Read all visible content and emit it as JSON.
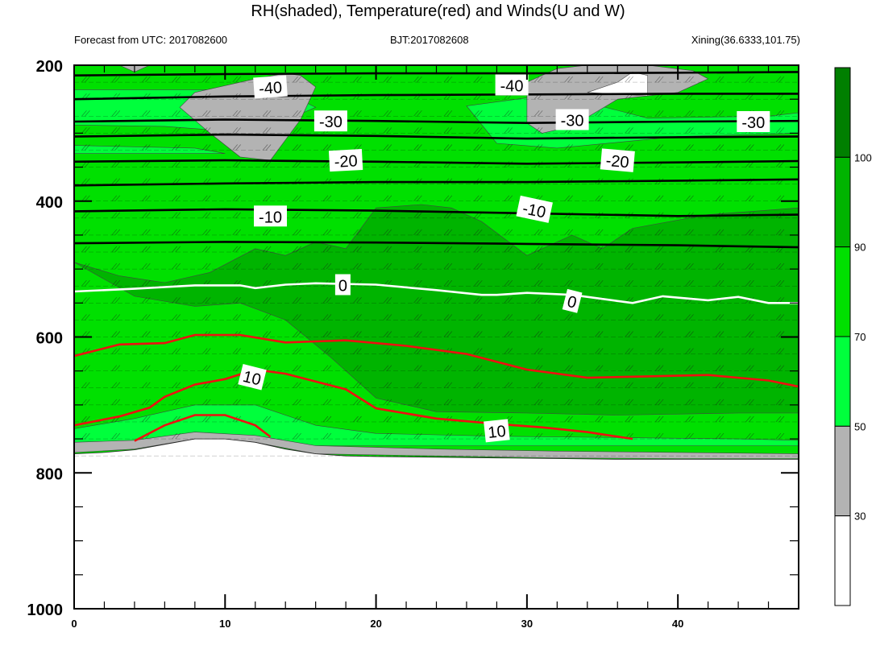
{
  "chart_data": {
    "type": "heatmap",
    "title": "RH(shaded), Temperature(red) and Winds(U and W)",
    "subtitle_left": "Forecast from UTC: 2017082600",
    "subtitle_center": "BJT:2017082608",
    "subtitle_right": "Xining(36.6333,101.75)",
    "xlim": [
      0,
      48
    ],
    "ylim": [
      1000,
      200
    ],
    "x_ticks": [
      0,
      10,
      20,
      30,
      40
    ],
    "x_tick_labels": [
      "0",
      "10",
      "20",
      "30",
      "40"
    ],
    "y_ticks": [
      200,
      400,
      600,
      800,
      1000
    ],
    "y_tick_labels": [
      "200",
      "400",
      "600",
      "800",
      "1000"
    ],
    "colorbar": {
      "levels": [
        30,
        50,
        70,
        90,
        100
      ],
      "level_labels": [
        "30",
        "50",
        "70",
        "90",
        "100"
      ],
      "colors": [
        "#ffffff",
        "#b3b3b3",
        "#00ff3c",
        "#00e000",
        "#00b400",
        "#007f00"
      ]
    },
    "surface_pressure": [
      [
        0,
        772
      ],
      [
        2,
        770
      ],
      [
        4,
        766
      ],
      [
        6,
        758
      ],
      [
        8,
        750
      ],
      [
        10,
        750
      ],
      [
        12,
        755
      ],
      [
        14,
        765
      ],
      [
        16,
        772
      ],
      [
        18,
        775
      ],
      [
        20,
        776
      ],
      [
        24,
        777
      ],
      [
        28,
        778
      ],
      [
        32,
        779
      ],
      [
        36,
        780
      ],
      [
        40,
        780
      ],
      [
        44,
        780
      ],
      [
        48,
        780
      ]
    ],
    "rh_bands": [
      {
        "name": "gray_lt50",
        "pressure_pairs": [
          [
            0,
            770,
            755
          ],
          [
            4,
            765,
            752
          ],
          [
            8,
            750,
            740
          ],
          [
            12,
            755,
            745
          ],
          [
            16,
            772,
            760
          ],
          [
            24,
            775,
            765
          ],
          [
            32,
            778,
            768
          ],
          [
            40,
            779,
            770
          ],
          [
            48,
            779,
            772
          ]
        ]
      },
      {
        "name": "rh_90_100_mid",
        "outline": [
          [
            0,
            490
          ],
          [
            4,
            540
          ],
          [
            8,
            555
          ],
          [
            11,
            550
          ],
          [
            14,
            575
          ],
          [
            17,
            630
          ],
          [
            20,
            690
          ],
          [
            24,
            710
          ],
          [
            30,
            712
          ],
          [
            36,
            715
          ],
          [
            44,
            712
          ],
          [
            48,
            712
          ],
          [
            48,
            410
          ],
          [
            42,
            420
          ],
          [
            37,
            440
          ],
          [
            35,
            470
          ],
          [
            33,
            450
          ],
          [
            30,
            480
          ],
          [
            27,
            430
          ],
          [
            25,
            410
          ],
          [
            23,
            405
          ],
          [
            20,
            410
          ],
          [
            18,
            470
          ],
          [
            16,
            460
          ],
          [
            14,
            480
          ],
          [
            12,
            470
          ],
          [
            9,
            505
          ],
          [
            6,
            520
          ],
          [
            3,
            510
          ],
          [
            0,
            490
          ]
        ]
      }
    ],
    "temperature_isotherms": [
      {
        "label": "-40",
        "points": [
          [
            0,
            215
          ],
          [
            10,
            213
          ],
          [
            20,
            212
          ],
          [
            30,
            212
          ],
          [
            40,
            211
          ],
          [
            48,
            210
          ]
        ]
      },
      {
        "label": "-40",
        "points": [
          [
            0,
            250
          ],
          [
            10,
            246
          ],
          [
            20,
            244
          ],
          [
            30,
            243
          ],
          [
            40,
            242
          ],
          [
            48,
            242
          ]
        ]
      },
      {
        "label": "-30",
        "points": [
          [
            0,
            283
          ],
          [
            10,
            280
          ],
          [
            20,
            282
          ],
          [
            30,
            285
          ],
          [
            40,
            283
          ],
          [
            48,
            282
          ]
        ]
      },
      {
        "label": "-30",
        "points": [
          [
            0,
            305
          ],
          [
            10,
            302
          ],
          [
            20,
            304
          ],
          [
            30,
            308
          ],
          [
            40,
            306
          ],
          [
            48,
            305
          ]
        ]
      },
      {
        "label": "-20",
        "points": [
          [
            0,
            342
          ],
          [
            10,
            340
          ],
          [
            20,
            342
          ],
          [
            30,
            345
          ],
          [
            40,
            343
          ],
          [
            48,
            341
          ]
        ]
      },
      {
        "label": "-10",
        "points": [
          [
            0,
            377
          ],
          [
            10,
            374
          ],
          [
            20,
            372
          ],
          [
            30,
            372
          ],
          [
            40,
            370
          ],
          [
            48,
            368
          ]
        ]
      },
      {
        "label": "-10",
        "points": [
          [
            0,
            415
          ],
          [
            10,
            412
          ],
          [
            20,
            414
          ],
          [
            30,
            418
          ],
          [
            40,
            422
          ],
          [
            48,
            420
          ]
        ]
      },
      {
        "label": "0",
        "points": [
          [
            0,
            462
          ],
          [
            10,
            460
          ],
          [
            20,
            461
          ],
          [
            30,
            463
          ],
          [
            40,
            465
          ],
          [
            48,
            468
          ]
        ]
      }
    ],
    "zero_isotherm_white": {
      "label": "0",
      "points": [
        [
          0,
          533
        ],
        [
          4,
          529
        ],
        [
          8,
          524
        ],
        [
          11,
          524
        ],
        [
          12,
          528
        ],
        [
          14,
          523
        ],
        [
          16,
          521
        ],
        [
          20,
          523
        ],
        [
          24,
          531
        ],
        [
          27,
          538
        ],
        [
          28,
          538
        ],
        [
          30,
          535
        ],
        [
          33,
          538
        ],
        [
          36,
          547
        ],
        [
          37,
          550
        ],
        [
          39,
          540
        ],
        [
          42,
          546
        ],
        [
          44,
          541
        ],
        [
          46,
          550
        ],
        [
          48,
          550
        ]
      ]
    },
    "red_isotherms": [
      {
        "label": "",
        "points": [
          [
            0,
            628
          ],
          [
            3,
            611
          ],
          [
            6,
            609
          ],
          [
            8,
            597
          ],
          [
            11,
            597
          ],
          [
            14,
            608
          ],
          [
            18,
            605
          ],
          [
            22,
            613
          ],
          [
            26,
            625
          ],
          [
            30,
            648
          ],
          [
            34,
            660
          ],
          [
            38,
            658
          ],
          [
            42,
            656
          ],
          [
            46,
            664
          ],
          [
            48,
            673
          ]
        ]
      },
      {
        "label": "10",
        "points": [
          [
            0,
            730
          ],
          [
            3,
            717
          ],
          [
            5,
            704
          ],
          [
            6,
            688
          ],
          [
            8,
            670
          ],
          [
            10,
            662
          ],
          [
            12,
            648
          ],
          [
            14,
            654
          ],
          [
            18,
            677
          ],
          [
            20,
            705
          ],
          [
            24,
            720
          ],
          [
            28,
            728
          ],
          [
            31,
            733
          ],
          [
            34,
            740
          ],
          [
            37,
            750
          ]
        ]
      },
      {
        "label": "",
        "points": [
          [
            4,
            753
          ],
          [
            6,
            730
          ],
          [
            8,
            715
          ],
          [
            10,
            715
          ],
          [
            12,
            730
          ],
          [
            13,
            747
          ]
        ]
      }
    ],
    "wind_barbs": "rows of wind barbs at every pressure level from 225 to 775 hPa across the full time range"
  }
}
